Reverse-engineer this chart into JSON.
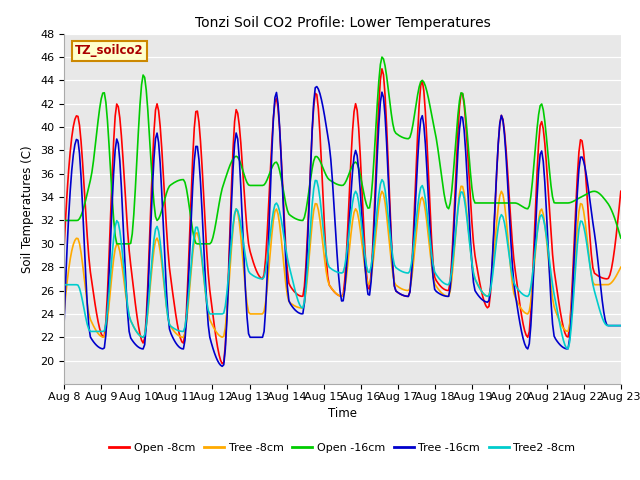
{
  "title": "Tonzi Soil CO2 Profile: Lower Temperatures",
  "ylabel": "Soil Temperatures (C)",
  "xlabel": "Time",
  "watermark": "TZ_soilco2",
  "ylim": [
    18,
    48
  ],
  "background_color": "#e8e8e8",
  "series": {
    "open_8cm": {
      "label": "Open -8cm",
      "color": "#ff0000",
      "lw": 1.2
    },
    "tree_8cm": {
      "label": "Tree -8cm",
      "color": "#ffaa00",
      "lw": 1.2
    },
    "open_16cm": {
      "label": "Open -16cm",
      "color": "#00cc00",
      "lw": 1.2
    },
    "tree_16cm": {
      "label": "Tree -16cm",
      "color": "#0000cc",
      "lw": 1.2
    },
    "tree2_8cm": {
      "label": "Tree2 -8cm",
      "color": "#00cccc",
      "lw": 1.2
    }
  },
  "xtick_labels": [
    "Aug 8",
    "Aug 9",
    "Aug 10",
    "Aug 11",
    "Aug 12",
    "Aug 13",
    "Aug 14",
    "Aug 15",
    "Aug 16",
    "Aug 17",
    "Aug 18",
    "Aug 19",
    "Aug 20",
    "Aug 21",
    "Aug 22",
    "Aug 23"
  ],
  "ytick_vals": [
    20,
    22,
    24,
    26,
    28,
    30,
    32,
    34,
    36,
    38,
    40,
    42,
    44,
    46,
    48
  ],
  "open_8cm_data": [
    29.5,
    41.0,
    27.5,
    22.0,
    42.0,
    28.5,
    21.5,
    42.0,
    27.5,
    21.5,
    41.5,
    26.0,
    19.7,
    41.5,
    29.5,
    27.0,
    42.5,
    26.5,
    25.5,
    43.0,
    26.5,
    25.5,
    42.0,
    26.0,
    45.0,
    26.0,
    25.5,
    44.0,
    27.0,
    26.0,
    43.0,
    29.0,
    24.5,
    41.0,
    28.0,
    22.0,
    40.5,
    27.5,
    22.0,
    39.0,
    27.5,
    27.0,
    34.5
  ],
  "tree_8cm_data": [
    24.0,
    30.5,
    23.5,
    22.0,
    30.0,
    23.5,
    22.0,
    30.5,
    23.0,
    22.0,
    31.0,
    23.5,
    22.0,
    33.0,
    24.0,
    24.0,
    33.0,
    25.0,
    24.5,
    33.5,
    26.5,
    25.5,
    33.0,
    26.5,
    34.5,
    26.5,
    26.0,
    34.0,
    26.5,
    25.5,
    35.0,
    27.0,
    25.5,
    34.5,
    25.5,
    24.0,
    33.0,
    24.5,
    22.5,
    33.5,
    26.5,
    26.5,
    28.0
  ],
  "open_16cm_data": [
    32.0,
    32.0,
    35.5,
    43.0,
    30.0,
    30.0,
    44.5,
    32.0,
    35.0,
    35.5,
    30.0,
    30.0,
    35.0,
    37.5,
    35.0,
    35.0,
    37.0,
    32.5,
    32.0,
    37.5,
    35.5,
    35.0,
    37.0,
    33.0,
    46.0,
    39.5,
    39.0,
    44.0,
    39.5,
    33.0,
    43.0,
    33.5,
    33.5,
    33.5,
    33.5,
    33.0,
    42.0,
    33.5,
    33.5,
    34.0,
    34.5,
    33.5,
    30.5
  ],
  "tree_16cm_data": [
    23.0,
    39.0,
    22.0,
    21.0,
    39.0,
    22.0,
    21.0,
    39.5,
    22.5,
    21.0,
    38.5,
    22.0,
    19.5,
    39.5,
    22.0,
    22.0,
    43.0,
    25.0,
    24.0,
    43.5,
    38.5,
    25.0,
    38.0,
    25.5,
    43.0,
    26.0,
    25.5,
    41.0,
    26.0,
    25.5,
    41.0,
    26.0,
    25.0,
    41.0,
    26.0,
    21.0,
    38.0,
    22.0,
    21.0,
    37.5,
    31.0,
    23.0,
    23.0
  ],
  "tree2_8cm_data": [
    26.5,
    26.5,
    22.5,
    22.5,
    32.0,
    23.5,
    22.0,
    31.5,
    23.0,
    22.5,
    31.5,
    24.0,
    24.0,
    33.0,
    27.5,
    27.0,
    33.5,
    28.0,
    24.5,
    35.5,
    28.0,
    27.5,
    34.5,
    27.5,
    35.5,
    28.0,
    27.5,
    35.0,
    27.5,
    26.5,
    34.5,
    27.0,
    25.5,
    32.5,
    26.5,
    25.5,
    32.5,
    25.5,
    21.0,
    32.0,
    26.0,
    23.0,
    23.0
  ]
}
